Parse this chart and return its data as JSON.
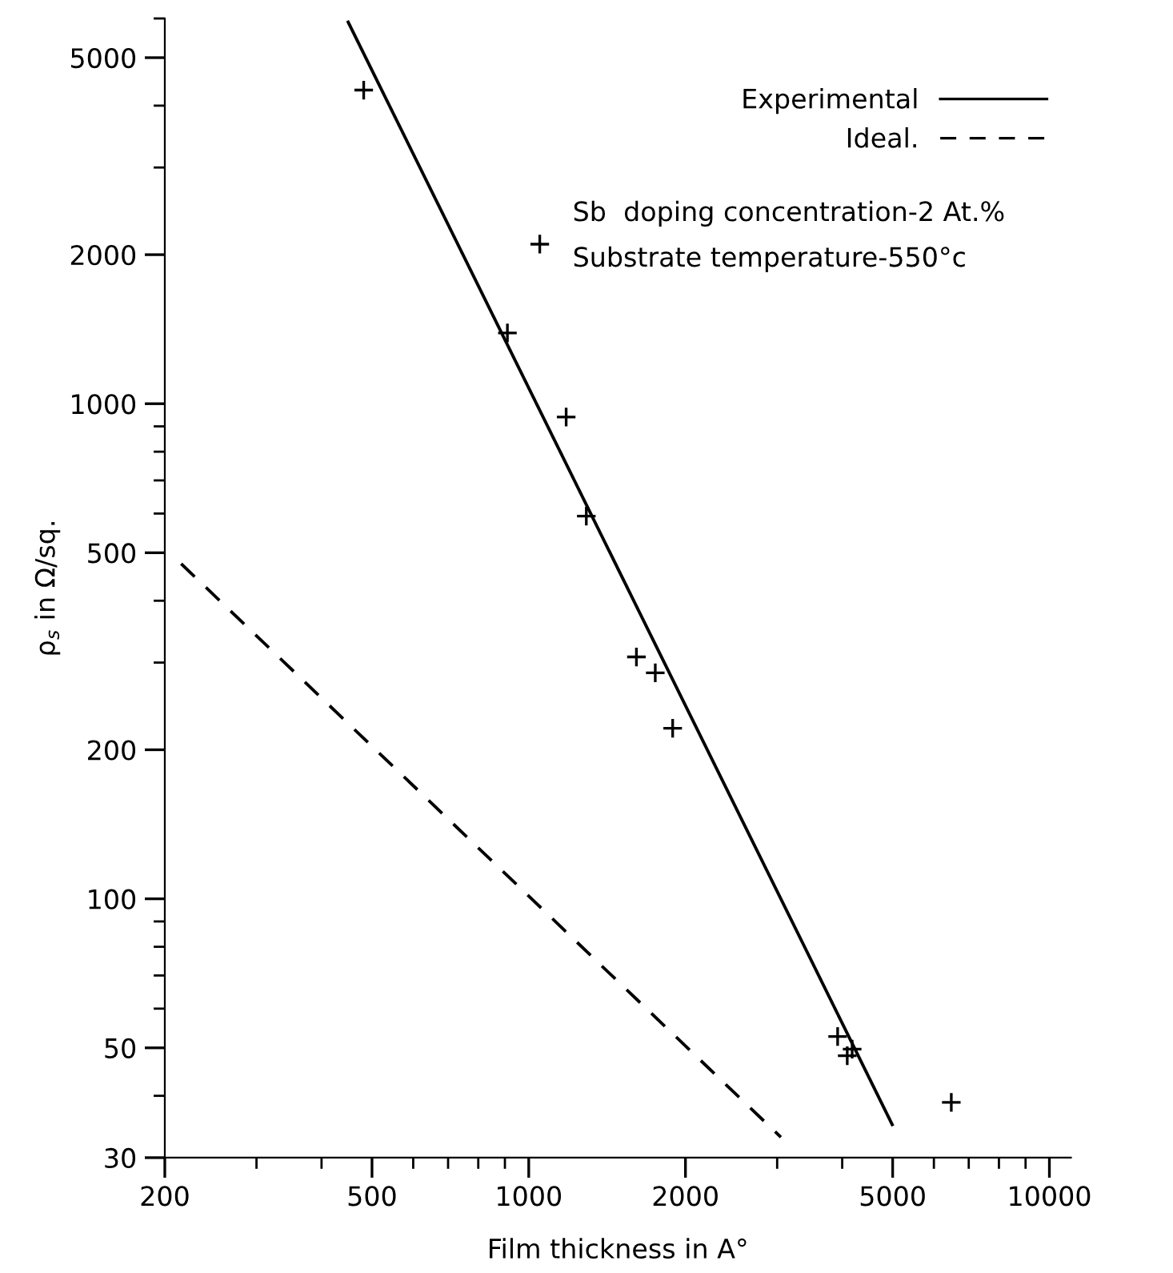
{
  "chart_data": {
    "type": "scatter",
    "xlabel": "Film thickness in A°",
    "ylabel": "ρ$_{s}$ in Ω/sq.",
    "xlim": [
      200,
      11000
    ],
    "ylim": [
      30,
      6000
    ],
    "log": "xy",
    "xticks": [
      200,
      500,
      1000,
      2000,
      5000,
      10000
    ],
    "yticks": [
      30,
      50,
      100,
      200,
      500,
      1000,
      2000,
      5000
    ],
    "grid": false,
    "legend": "top right",
    "marker": "cross",
    "series": [
      {
        "color": "#000000",
        "x": [
          482,
          1050,
          910,
          1180,
          1290,
          1610,
          1750,
          1890,
          3920,
          4180,
          4090,
          6480
        ],
        "values": [
          4300,
          2100,
          1390,
          940,
          593,
          308,
          286,
          221,
          52.7,
          49.7,
          48.2,
          38.8
        ]
      },
      {
        "type": "line",
        "name": "Experimental",
        "color": "#000000",
        "line_style": "solid",
        "marker": "none",
        "x": [
          450,
          4990
        ],
        "values": [
          5900,
          35
        ]
      },
      {
        "type": "line",
        "name": "Ideal.",
        "color": "#000000",
        "line_style": "dashed",
        "marker": "none",
        "x": [
          215,
          3050
        ],
        "values": [
          475,
          33
        ]
      }
    ],
    "annotations": [
      "Sb  doping concentration-2 At.%",
      "Substrate temperature-550°c"
    ]
  }
}
